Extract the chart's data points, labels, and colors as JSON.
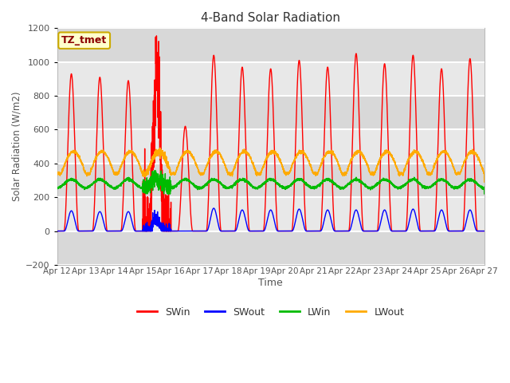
{
  "title": "4-Band Solar Radiation",
  "xlabel": "Time",
  "ylabel": "Solar Radiation (W/m2)",
  "xlim": [
    0,
    15
  ],
  "ylim": [
    -200,
    1200
  ],
  "yticks": [
    -200,
    0,
    200,
    400,
    600,
    800,
    1000,
    1200
  ],
  "xtick_labels": [
    "Apr 12",
    "Apr 13",
    "Apr 14",
    "Apr 15",
    "Apr 16",
    "Apr 17",
    "Apr 18",
    "Apr 19",
    "Apr 20",
    "Apr 21",
    "Apr 22",
    "Apr 23",
    "Apr 24",
    "Apr 25",
    "Apr 26",
    "Apr 27"
  ],
  "xtick_positions": [
    0,
    1,
    2,
    3,
    4,
    5,
    6,
    7,
    8,
    9,
    10,
    11,
    12,
    13,
    14,
    15
  ],
  "legend_labels": [
    "SWin",
    "SWout",
    "LWin",
    "LWout"
  ],
  "legend_colors": [
    "#ff0000",
    "#0000ff",
    "#00bb00",
    "#ffaa00"
  ],
  "annotation_text": "TZ_tmet",
  "annotation_bg": "#ffffcc",
  "annotation_border": "#ccaa00",
  "band_colors": [
    "#d8d8d8",
    "#e8e8e8"
  ],
  "fig_bg": "#ffffff",
  "grid_color": "#ffffff",
  "n_points_per_day": 288,
  "SWin_peaks": [
    930,
    910,
    890,
    960,
    620,
    1040,
    970,
    960,
    1010,
    970,
    1050,
    990,
    1040,
    960,
    1020
  ],
  "SWout_peaks": [
    120,
    115,
    115,
    75,
    0,
    135,
    125,
    125,
    130,
    125,
    125,
    125,
    130,
    125,
    125
  ],
  "LWin_base": 280,
  "LWin_amp": 25,
  "LWout_base": 340,
  "LWout_amp": 130
}
